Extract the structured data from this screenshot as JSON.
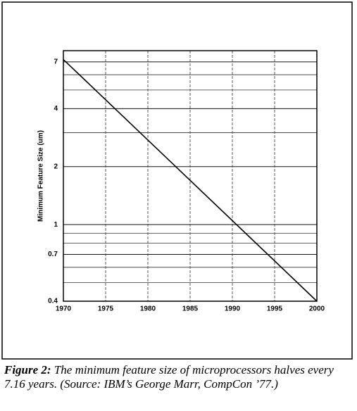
{
  "chart_data": {
    "type": "line",
    "ylabel": "Minimum Feature Size (um)",
    "x": [
      1970,
      2000
    ],
    "values": [
      7.2,
      0.4
    ],
    "color": "#000000",
    "xlim": [
      1970,
      2000
    ],
    "xticks": [
      1970,
      1975,
      1980,
      1985,
      1990,
      1995,
      2000
    ],
    "ylim": [
      0.4,
      8
    ],
    "yticks": [
      0.4,
      0.7,
      1,
      2,
      4,
      7
    ],
    "y_minor_gridlines": [
      0.5,
      0.6,
      0.8,
      0.9,
      3,
      5,
      6
    ],
    "log_scale_y": true,
    "grid": true
  },
  "caption": {
    "label": "Figure 2:",
    "text": "The minimum feature size of microprocessors halves every 7.16 years. (Source: IBM’s George Marr, CompCon ’77.)"
  }
}
